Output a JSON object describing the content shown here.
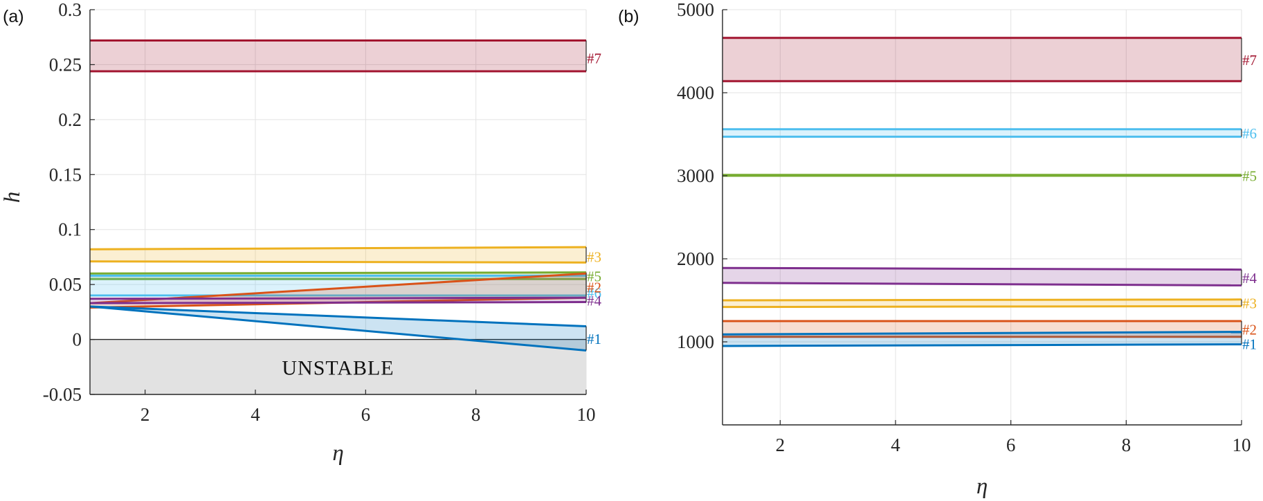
{
  "colors": {
    "s1": "#0072bd",
    "s2": "#d95319",
    "s3": "#edb120",
    "s4": "#7e2f8e",
    "s5": "#77ac30",
    "s6": "#4dbeee",
    "s7": "#a2142f",
    "unstable": "#e2e2e2"
  },
  "chart_data": [
    {
      "type": "area",
      "panel_label": "(a)",
      "xlabel": "η",
      "ylabel": "h",
      "xlim": [
        1,
        10
      ],
      "ylim": [
        -0.05,
        0.3
      ],
      "x_ticks": [
        2,
        4,
        6,
        8,
        10
      ],
      "x_tick_labels": [
        "2",
        "4",
        "6",
        "8",
        "10"
      ],
      "y_ticks": [
        -0.05,
        0,
        0.05,
        0.1,
        0.15,
        0.2,
        0.25,
        0.3
      ],
      "y_tick_labels": [
        "-0.05",
        "0",
        "0.05",
        "0.1",
        "0.15",
        "0.2",
        "0.25",
        "0.3"
      ],
      "grid": true,
      "region": {
        "label": "UNSTABLE",
        "ymin": -0.05,
        "ymax": 0,
        "color_key": "unstable"
      },
      "series": [
        {
          "label": "#7",
          "color_key": "s7",
          "x": [
            1,
            10
          ],
          "upper": [
            0.272,
            0.272
          ],
          "lower": [
            0.244,
            0.244
          ]
        },
        {
          "label": "#3",
          "color_key": "s3",
          "x": [
            1,
            10
          ],
          "upper": [
            0.082,
            0.084
          ],
          "lower": [
            0.071,
            0.07
          ]
        },
        {
          "label": "#5",
          "color_key": "s5",
          "x": [
            1,
            10
          ],
          "upper": [
            0.06,
            0.061
          ],
          "lower": [
            0.055,
            0.055
          ]
        },
        {
          "label": "#6",
          "color_key": "s6",
          "x": [
            1,
            10
          ],
          "upper": [
            0.058,
            0.058
          ],
          "lower": [
            0.04,
            0.04
          ]
        },
        {
          "label": "#2",
          "color_key": "s2",
          "x": [
            1,
            10
          ],
          "upper": [
            0.033,
            0.06
          ],
          "lower": [
            0.029,
            0.038
          ]
        },
        {
          "label": "#4",
          "color_key": "s4",
          "x": [
            1,
            10
          ],
          "upper": [
            0.037,
            0.038
          ],
          "lower": [
            0.033,
            0.034
          ]
        },
        {
          "label": "#1",
          "color_key": "s1",
          "x": [
            1,
            10
          ],
          "upper": [
            0.03,
            0.012
          ],
          "lower": [
            0.03,
            -0.01
          ]
        }
      ]
    },
    {
      "type": "area",
      "panel_label": "(b)",
      "xlabel": "η",
      "ylabel": "",
      "xlim": [
        1,
        10
      ],
      "ylim": [
        0,
        5000
      ],
      "x_ticks": [
        2,
        4,
        6,
        8,
        10
      ],
      "x_tick_labels": [
        "2",
        "4",
        "6",
        "8",
        "10"
      ],
      "y_ticks": [
        1000,
        2000,
        3000,
        4000,
        5000
      ],
      "y_tick_labels": [
        "1000",
        "2000",
        "3000",
        "4000",
        "5000"
      ],
      "grid": true,
      "series": [
        {
          "label": "#7",
          "color_key": "s7",
          "x": [
            1,
            10
          ],
          "upper": [
            4660,
            4660
          ],
          "lower": [
            4140,
            4140
          ]
        },
        {
          "label": "#6",
          "color_key": "s6",
          "x": [
            1,
            10
          ],
          "upper": [
            3560,
            3560
          ],
          "lower": [
            3470,
            3470
          ]
        },
        {
          "label": "#5",
          "color_key": "s5",
          "x": [
            1,
            10
          ],
          "upper": [
            3010,
            3010
          ],
          "lower": [
            3000,
            3000
          ]
        },
        {
          "label": "#4",
          "color_key": "s4",
          "x": [
            1,
            10
          ],
          "upper": [
            1890,
            1870
          ],
          "lower": [
            1710,
            1680
          ]
        },
        {
          "label": "#3",
          "color_key": "s3",
          "x": [
            1,
            10
          ],
          "upper": [
            1500,
            1510
          ],
          "lower": [
            1420,
            1430
          ]
        },
        {
          "label": "#2",
          "color_key": "s2",
          "x": [
            1,
            10
          ],
          "upper": [
            1250,
            1250
          ],
          "lower": [
            1060,
            1060
          ]
        },
        {
          "label": "#1",
          "color_key": "s1",
          "x": [
            1,
            10
          ],
          "upper": [
            1090,
            1120
          ],
          "lower": [
            950,
            970
          ]
        }
      ]
    }
  ]
}
